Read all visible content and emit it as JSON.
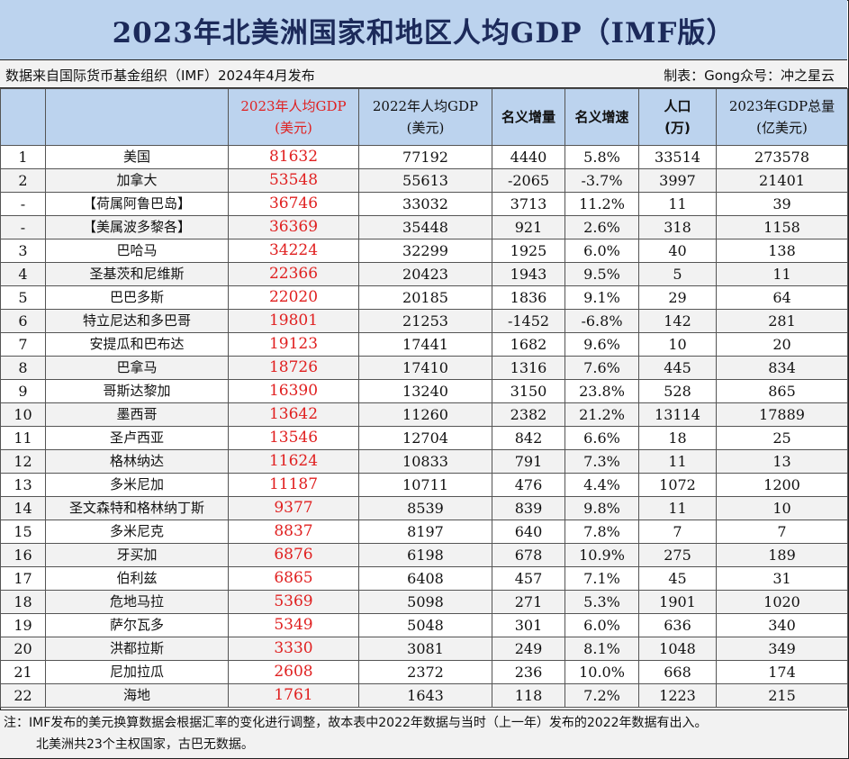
{
  "title": "2023年北美洲国家和地区人均GDP（IMF版）",
  "source": "数据来自国际货币基金组织（IMF）2024年4月发布",
  "maker": "制表：Gong众号：冲之星云",
  "headers": {
    "col_pc2023_l1": "2023年人均GDP",
    "col_pc2023_l2": "(美元)",
    "col_pc2022_l1": "2022年人均GDP",
    "col_pc2022_l2": "(美元)",
    "col_nom_inc": "名义增量",
    "col_nom_rate": "名义增速",
    "col_pop_l1": "人口",
    "col_pop_l2": "(万)",
    "col_gdp_l1": "2023年GDP总量",
    "col_gdp_l2": "(亿美元)"
  },
  "rows": [
    {
      "rank": "1",
      "name": "美国",
      "pc2023": "81632",
      "pc2022": "77192",
      "inc": "4440",
      "rate": "5.8%",
      "pop": "33514",
      "gdp": "273578"
    },
    {
      "rank": "2",
      "name": "加拿大",
      "pc2023": "53548",
      "pc2022": "55613",
      "inc": "-2065",
      "rate": "-3.7%",
      "pop": "3997",
      "gdp": "21401"
    },
    {
      "rank": "-",
      "name": "【荷属阿鲁巴岛】",
      "pc2023": "36746",
      "pc2022": "33032",
      "inc": "3713",
      "rate": "11.2%",
      "pop": "11",
      "gdp": "39"
    },
    {
      "rank": "-",
      "name": "【美属波多黎各】",
      "pc2023": "36369",
      "pc2022": "35448",
      "inc": "921",
      "rate": "2.6%",
      "pop": "318",
      "gdp": "1158"
    },
    {
      "rank": "3",
      "name": "巴哈马",
      "pc2023": "34224",
      "pc2022": "32299",
      "inc": "1925",
      "rate": "6.0%",
      "pop": "40",
      "gdp": "138"
    },
    {
      "rank": "4",
      "name": "圣基茨和尼维斯",
      "pc2023": "22366",
      "pc2022": "20423",
      "inc": "1943",
      "rate": "9.5%",
      "pop": "5",
      "gdp": "11"
    },
    {
      "rank": "5",
      "name": "巴巴多斯",
      "pc2023": "22020",
      "pc2022": "20185",
      "inc": "1836",
      "rate": "9.1%",
      "pop": "29",
      "gdp": "64"
    },
    {
      "rank": "6",
      "name": "特立尼达和多巴哥",
      "pc2023": "19801",
      "pc2022": "21253",
      "inc": "-1452",
      "rate": "-6.8%",
      "pop": "142",
      "gdp": "281"
    },
    {
      "rank": "7",
      "name": "安提瓜和巴布达",
      "pc2023": "19123",
      "pc2022": "17441",
      "inc": "1682",
      "rate": "9.6%",
      "pop": "10",
      "gdp": "20"
    },
    {
      "rank": "8",
      "name": "巴拿马",
      "pc2023": "18726",
      "pc2022": "17410",
      "inc": "1316",
      "rate": "7.6%",
      "pop": "445",
      "gdp": "834"
    },
    {
      "rank": "9",
      "name": "哥斯达黎加",
      "pc2023": "16390",
      "pc2022": "13240",
      "inc": "3150",
      "rate": "23.8%",
      "pop": "528",
      "gdp": "865"
    },
    {
      "rank": "10",
      "name": "墨西哥",
      "pc2023": "13642",
      "pc2022": "11260",
      "inc": "2382",
      "rate": "21.2%",
      "pop": "13114",
      "gdp": "17889"
    },
    {
      "rank": "11",
      "name": "圣卢西亚",
      "pc2023": "13546",
      "pc2022": "12704",
      "inc": "842",
      "rate": "6.6%",
      "pop": "18",
      "gdp": "25"
    },
    {
      "rank": "12",
      "name": "格林纳达",
      "pc2023": "11624",
      "pc2022": "10833",
      "inc": "791",
      "rate": "7.3%",
      "pop": "11",
      "gdp": "13"
    },
    {
      "rank": "13",
      "name": "多米尼加",
      "pc2023": "11187",
      "pc2022": "10711",
      "inc": "476",
      "rate": "4.4%",
      "pop": "1072",
      "gdp": "1200"
    },
    {
      "rank": "14",
      "name": "圣文森特和格林纳丁斯",
      "pc2023": "9377",
      "pc2022": "8539",
      "inc": "839",
      "rate": "9.8%",
      "pop": "11",
      "gdp": "10"
    },
    {
      "rank": "15",
      "name": "多米尼克",
      "pc2023": "8837",
      "pc2022": "8197",
      "inc": "640",
      "rate": "7.8%",
      "pop": "7",
      "gdp": "7"
    },
    {
      "rank": "16",
      "name": "牙买加",
      "pc2023": "6876",
      "pc2022": "6198",
      "inc": "678",
      "rate": "10.9%",
      "pop": "275",
      "gdp": "189"
    },
    {
      "rank": "17",
      "name": "伯利兹",
      "pc2023": "6865",
      "pc2022": "6408",
      "inc": "457",
      "rate": "7.1%",
      "pop": "45",
      "gdp": "31"
    },
    {
      "rank": "18",
      "name": "危地马拉",
      "pc2023": "5369",
      "pc2022": "5098",
      "inc": "271",
      "rate": "5.3%",
      "pop": "1901",
      "gdp": "1020"
    },
    {
      "rank": "19",
      "name": "萨尔瓦多",
      "pc2023": "5349",
      "pc2022": "5048",
      "inc": "301",
      "rate": "6.0%",
      "pop": "636",
      "gdp": "340"
    },
    {
      "rank": "20",
      "name": "洪都拉斯",
      "pc2023": "3330",
      "pc2022": "3081",
      "inc": "249",
      "rate": "8.1%",
      "pop": "1048",
      "gdp": "349"
    },
    {
      "rank": "21",
      "name": "尼加拉瓜",
      "pc2023": "2608",
      "pc2022": "2372",
      "inc": "236",
      "rate": "10.0%",
      "pop": "668",
      "gdp": "174"
    },
    {
      "rank": "22",
      "name": "海地",
      "pc2023": "1761",
      "pc2022": "1643",
      "inc": "118",
      "rate": "7.2%",
      "pop": "1223",
      "gdp": "215"
    }
  ],
  "note_line1": "注：IMF发布的美元换算数据会根据汇率的变化进行调整，故本表中2022年数据与当时（上一年）发布的2022年数据有出入。",
  "note_line2": "北美洲共23个主权国家，古巴无数据。",
  "colors": {
    "header_bg": "#bcd3ee",
    "title_text": "#1c2a5a",
    "highlight_red": "#e02020",
    "stripe": "#f2f2f2"
  }
}
